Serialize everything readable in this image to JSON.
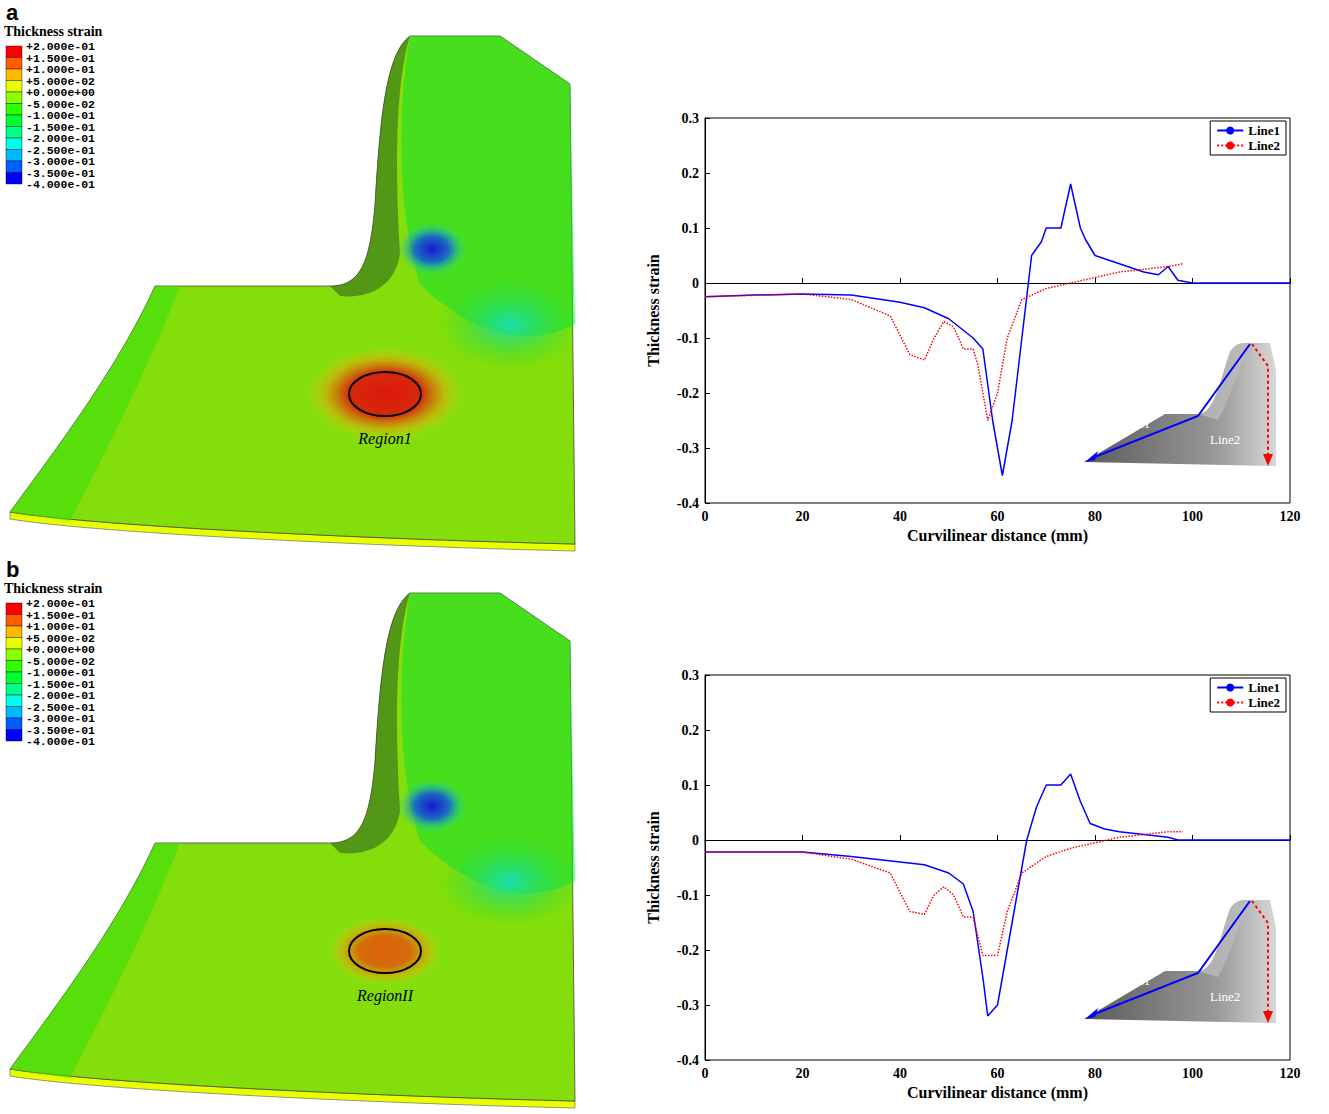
{
  "contour_plots": [
    {
      "panel": "a",
      "title": "Thickness strain",
      "region_label": "Region1",
      "max": 0.2,
      "min": -0.4,
      "colorbar": {
        "ticks": [
          {
            "value": 0.2,
            "label": "+2.000e-01"
          },
          {
            "value": 0.15,
            "label": "+1.500e-01"
          },
          {
            "value": 0.1,
            "label": "+1.000e-01"
          },
          {
            "value": 0.05,
            "label": "+5.000e-02"
          },
          {
            "value": 0,
            "label": "+0.000e+00"
          },
          {
            "value": -0.05,
            "label": "-5.000e-02"
          },
          {
            "value": -0.1,
            "label": "-1.000e-01"
          },
          {
            "value": -0.15,
            "label": "-1.500e-01"
          },
          {
            "value": -0.2,
            "label": "-2.000e-01"
          },
          {
            "value": -0.25,
            "label": "-2.500e-01"
          },
          {
            "value": -0.3,
            "label": "-3.000e-01"
          },
          {
            "value": -0.35,
            "label": "-3.500e-01"
          },
          {
            "value": -0.4,
            "label": "-4.000e-01"
          }
        ],
        "colors": [
          "#ff0000",
          "#ff5d00",
          "#ffb900",
          "#e8ff00",
          "#8bff00",
          "#2eff00",
          "#00ff2e",
          "#00ff8b",
          "#00ffe8",
          "#00b9ff",
          "#005dff",
          "#0000ff"
        ]
      }
    },
    {
      "panel": "b",
      "title": "Thickness strain",
      "region_label": "RegionII",
      "max": 0.12,
      "min": -0.4,
      "colorbar": {
        "ticks": [
          {
            "value": 0.2,
            "label": "+2.000e-01"
          },
          {
            "value": 0.15,
            "label": "+1.500e-01"
          },
          {
            "value": 0.1,
            "label": "+1.000e-01"
          },
          {
            "value": 0.05,
            "label": "+5.000e-02"
          },
          {
            "value": 0,
            "label": "+0.000e+00"
          },
          {
            "value": -0.05,
            "label": "-5.000e-02"
          },
          {
            "value": -0.1,
            "label": "-1.000e-01"
          },
          {
            "value": -0.15,
            "label": "-1.500e-01"
          },
          {
            "value": -0.2,
            "label": "-2.000e-01"
          },
          {
            "value": -0.25,
            "label": "-2.500e-01"
          },
          {
            "value": -0.3,
            "label": "-3.000e-01"
          },
          {
            "value": -0.35,
            "label": "-3.500e-01"
          },
          {
            "value": -0.4,
            "label": "-4.000e-01"
          }
        ],
        "colors": [
          "#ff0000",
          "#ff5d00",
          "#ffb900",
          "#e8ff00",
          "#8bff00",
          "#2eff00",
          "#00ff2e",
          "#00ff8b",
          "#00ffe8",
          "#00b9ff",
          "#005dff",
          "#0000ff"
        ]
      }
    }
  ],
  "chart_data": [
    {
      "panel": "a",
      "type": "line",
      "xlabel": "Curvilinear distance (mm)",
      "ylabel": "Thickness strain",
      "xlim": [
        0,
        120
      ],
      "xticks": [
        0,
        20,
        40,
        60,
        80,
        100,
        120
      ],
      "ylim": [
        -0.4,
        0.3
      ],
      "yticks": [
        -0.4,
        -0.3,
        -0.2,
        -0.1,
        0,
        0.1,
        0.2,
        0.3
      ],
      "grid": false,
      "legend": "upper right",
      "series": [
        {
          "name": "Line1",
          "color": "#0000ff",
          "line_style": "solid",
          "x": [
            0,
            10,
            20,
            30,
            40,
            45,
            50,
            55,
            57,
            59,
            61,
            63,
            65,
            67,
            69,
            70,
            72,
            73,
            75,
            77,
            78,
            80,
            85,
            90,
            93,
            95,
            97,
            100,
            110,
            120
          ],
          "values": [
            -0.025,
            -0.022,
            -0.02,
            -0.022,
            -0.035,
            -0.045,
            -0.065,
            -0.1,
            -0.12,
            -0.25,
            -0.35,
            -0.25,
            -0.1,
            0.05,
            0.075,
            0.1,
            0.1,
            0.1,
            0.18,
            0.1,
            0.08,
            0.05,
            0.035,
            0.02,
            0.015,
            0.03,
            0.005,
            0,
            0,
            0
          ]
        },
        {
          "name": "Line2",
          "color": "#ff0000",
          "line_style": "dotted",
          "x": [
            0,
            20,
            30,
            38,
            42,
            45,
            47,
            49,
            51,
            53,
            55,
            56,
            58,
            60,
            62,
            65,
            70,
            75,
            80,
            85,
            90,
            95,
            98
          ],
          "values": [
            -0.025,
            -0.02,
            -0.03,
            -0.06,
            -0.13,
            -0.14,
            -0.1,
            -0.07,
            -0.08,
            -0.12,
            -0.12,
            -0.15,
            -0.25,
            -0.2,
            -0.1,
            -0.03,
            -0.01,
            0,
            0.01,
            0.02,
            0.025,
            0.03,
            0.035
          ]
        }
      ]
    },
    {
      "panel": "b",
      "type": "line",
      "xlabel": "Curvilinear distance (mm)",
      "ylabel": "Thickness strain",
      "xlim": [
        0,
        120
      ],
      "xticks": [
        0,
        20,
        40,
        60,
        80,
        100,
        120
      ],
      "ylim": [
        -0.4,
        0.3
      ],
      "yticks": [
        -0.4,
        -0.3,
        -0.2,
        -0.1,
        0,
        0.1,
        0.2,
        0.3
      ],
      "grid": false,
      "legend": "upper right",
      "series": [
        {
          "name": "Line1",
          "color": "#0000ff",
          "line_style": "solid",
          "x": [
            0,
            20,
            30,
            40,
            45,
            50,
            53,
            55,
            57,
            58,
            60,
            62,
            64,
            66,
            68,
            70,
            72,
            73,
            75,
            77,
            79,
            82,
            85,
            90,
            95,
            97,
            100,
            110,
            118,
            120
          ],
          "values": [
            -0.022,
            -0.022,
            -0.03,
            -0.04,
            -0.045,
            -0.06,
            -0.08,
            -0.13,
            -0.25,
            -0.32,
            -0.3,
            -0.2,
            -0.1,
            0,
            0.06,
            0.1,
            0.1,
            0.1,
            0.12,
            0.07,
            0.03,
            0.02,
            0.015,
            0.01,
            0.005,
            0,
            0,
            0,
            0,
            0
          ]
        },
        {
          "name": "Line2",
          "color": "#ff0000",
          "line_style": "dotted",
          "x": [
            0,
            20,
            30,
            38,
            42,
            45,
            47,
            49,
            51,
            53,
            55,
            57,
            60,
            62,
            65,
            70,
            75,
            80,
            85,
            90,
            95,
            98
          ],
          "values": [
            -0.022,
            -0.022,
            -0.035,
            -0.06,
            -0.13,
            -0.135,
            -0.1,
            -0.085,
            -0.1,
            -0.14,
            -0.14,
            -0.21,
            -0.21,
            -0.13,
            -0.06,
            -0.03,
            -0.015,
            -0.005,
            0.005,
            0.01,
            0.015,
            0.015
          ]
        }
      ]
    }
  ]
}
